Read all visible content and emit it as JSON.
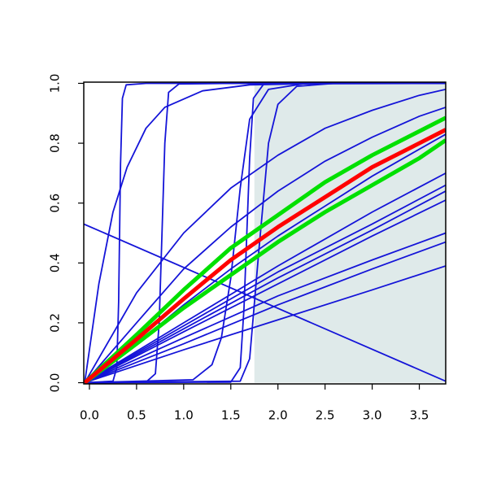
{
  "chart_data": {
    "type": "line",
    "xlim": [
      -0.06,
      3.78
    ],
    "ylim": [
      -0.004,
      1.004
    ],
    "xticks": [
      {
        "value": 0,
        "label": "0.0"
      },
      {
        "value": 0.5,
        "label": "0.5"
      },
      {
        "value": 1,
        "label": "1.0"
      },
      {
        "value": 1.5,
        "label": "1.5"
      },
      {
        "value": 2,
        "label": "2.0"
      },
      {
        "value": 2.5,
        "label": "2.5"
      },
      {
        "value": 3,
        "label": "3.0"
      },
      {
        "value": 3.5,
        "label": "3.5"
      }
    ],
    "yticks": [
      {
        "value": 0,
        "label": "0.0"
      },
      {
        "value": 0.2,
        "label": "0.2"
      },
      {
        "value": 0.4,
        "label": "0.4"
      },
      {
        "value": 0.6,
        "label": "0.6"
      },
      {
        "value": 0.8,
        "label": "0.8"
      },
      {
        "value": 1,
        "label": "1.0"
      }
    ],
    "shade": {
      "x": [
        1.75,
        3.78
      ],
      "y": [
        0,
        1
      ],
      "color": "#dfeaea"
    },
    "series": [
      {
        "color": "#1414d8",
        "linewidth": 1.8,
        "x": [
          -0.05,
          0.25,
          0.29,
          0.31,
          0.32,
          0.33,
          0.35,
          0.39,
          0.6,
          1.5,
          3.78
        ],
        "values": [
          0,
          0.005,
          0.05,
          0.27,
          0.5,
          0.73,
          0.95,
          0.995,
          1,
          1,
          1
        ]
      },
      {
        "color": "#1414d8",
        "linewidth": 1.8,
        "x": [
          -0.05,
          0.6,
          0.7,
          0.74,
          0.77,
          0.8,
          0.84,
          0.95,
          1.5,
          3.78
        ],
        "values": [
          0,
          0.002,
          0.03,
          0.2,
          0.5,
          0.8,
          0.97,
          0.998,
          1,
          1
        ]
      },
      {
        "color": "#1414d8",
        "linewidth": 1.8,
        "x": [
          -0.05,
          1.5,
          1.6,
          1.64,
          1.67,
          1.7,
          1.74,
          1.85,
          3.78
        ],
        "values": [
          0,
          0.002,
          0.05,
          0.25,
          0.5,
          0.75,
          0.95,
          0.998,
          1
        ]
      },
      {
        "color": "#1414d8",
        "linewidth": 1.8,
        "x": [
          -0.05,
          1.1,
          1.3,
          1.4,
          1.5,
          1.6,
          1.7,
          1.9,
          2.3,
          3.78
        ],
        "values": [
          0,
          0.01,
          0.06,
          0.15,
          0.35,
          0.65,
          0.88,
          0.98,
          1,
          1
        ]
      },
      {
        "color": "#1414d8",
        "linewidth": 1.8,
        "x": [
          -0.05,
          1.6,
          1.7,
          1.8,
          1.9,
          2.0,
          2.2,
          2.6,
          3.78
        ],
        "values": [
          0,
          0.005,
          0.08,
          0.45,
          0.8,
          0.93,
          0.99,
          1,
          1
        ]
      },
      {
        "color": "#1414d8",
        "linewidth": 1.8,
        "x": [
          -0.05,
          0.1,
          0.25,
          0.4,
          0.6,
          0.8,
          1.2,
          1.7,
          2.5,
          3.78
        ],
        "values": [
          0,
          0.33,
          0.57,
          0.72,
          0.85,
          0.92,
          0.975,
          0.995,
          1,
          1
        ]
      },
      {
        "color": "#1414d8",
        "linewidth": 1.8,
        "x": [
          -0.05,
          0.5,
          1,
          1.5,
          2,
          2.5,
          3,
          3.5,
          3.78
        ],
        "values": [
          0,
          0.3,
          0.5,
          0.65,
          0.76,
          0.85,
          0.91,
          0.96,
          0.98
        ]
      },
      {
        "color": "#1414d8",
        "linewidth": 1.8,
        "x": [
          -0.05,
          0.5,
          1,
          1.5,
          2,
          2.5,
          3,
          3.5,
          3.78
        ],
        "values": [
          0,
          0.2,
          0.38,
          0.52,
          0.64,
          0.74,
          0.82,
          0.89,
          0.92
        ]
      },
      {
        "color": "#1414d8",
        "linewidth": 1.8,
        "x": [
          -0.05,
          0.5,
          1,
          1.5,
          2,
          2.5,
          3,
          3.5,
          3.78
        ],
        "values": [
          0,
          0.13,
          0.26,
          0.38,
          0.49,
          0.59,
          0.69,
          0.78,
          0.83
        ]
      },
      {
        "color": "#1414d8",
        "linewidth": 1.8,
        "x": [
          -0.05,
          1,
          2,
          3,
          3.78
        ],
        "values": [
          0,
          0.2,
          0.39,
          0.57,
          0.7
        ]
      },
      {
        "color": "#1414d8",
        "linewidth": 1.8,
        "x": [
          -0.05,
          1,
          2,
          3,
          3.78
        ],
        "values": [
          0,
          0.19,
          0.37,
          0.53,
          0.66
        ]
      },
      {
        "color": "#1414d8",
        "linewidth": 1.8,
        "x": [
          -0.05,
          1,
          2,
          3,
          3.78
        ],
        "values": [
          0,
          0.18,
          0.35,
          0.51,
          0.64
        ]
      },
      {
        "color": "#1414d8",
        "linewidth": 1.8,
        "x": [
          -0.05,
          1,
          2,
          3,
          3.78
        ],
        "values": [
          0,
          0.17,
          0.33,
          0.49,
          0.61
        ]
      },
      {
        "color": "#1414d8",
        "linewidth": 1.8,
        "x": [
          -0.05,
          1,
          2,
          3,
          3.78
        ],
        "values": [
          0,
          0.15,
          0.29,
          0.41,
          0.5
        ]
      },
      {
        "color": "#1414d8",
        "linewidth": 1.8,
        "x": [
          -0.05,
          1,
          2,
          3,
          3.78
        ],
        "values": [
          0,
          0.13,
          0.26,
          0.38,
          0.47
        ]
      },
      {
        "color": "#1414d8",
        "linewidth": 1.8,
        "x": [
          -0.05,
          1,
          2,
          3,
          3.78
        ],
        "values": [
          0,
          0.11,
          0.21,
          0.31,
          0.39
        ]
      },
      {
        "color": "#1414d8",
        "linewidth": 1.8,
        "x": [
          -0.06,
          3.78
        ],
        "values": [
          0.53,
          0.005
        ]
      },
      {
        "color": "#00e000",
        "linewidth": 5,
        "x": [
          -0.05,
          0.5,
          1,
          1.5,
          2,
          2.5,
          3,
          3.5,
          3.78
        ],
        "values": [
          0,
          0.16,
          0.31,
          0.45,
          0.56,
          0.67,
          0.76,
          0.84,
          0.885
        ]
      },
      {
        "color": "#00e000",
        "linewidth": 5,
        "x": [
          -0.05,
          0.5,
          1,
          1.5,
          2,
          2.5,
          3,
          3.5,
          3.78
        ],
        "values": [
          0,
          0.13,
          0.25,
          0.36,
          0.47,
          0.57,
          0.66,
          0.75,
          0.81
        ]
      },
      {
        "color": "#ff0000",
        "linewidth": 5,
        "x": [
          -0.05,
          0.5,
          1,
          1.5,
          2,
          2.5,
          3,
          3.5,
          3.78
        ],
        "values": [
          0,
          0.145,
          0.28,
          0.41,
          0.52,
          0.62,
          0.72,
          0.8,
          0.845
        ]
      }
    ]
  }
}
